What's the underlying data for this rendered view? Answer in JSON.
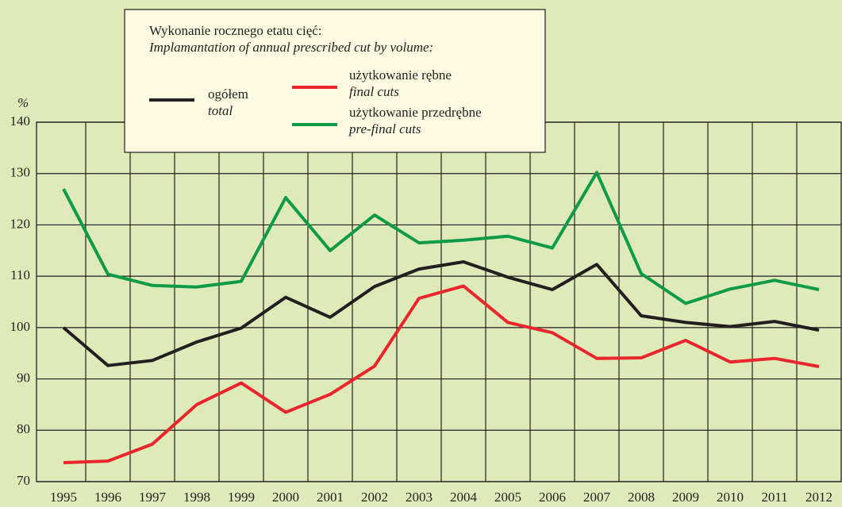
{
  "chart_data": {
    "type": "line",
    "legend_title": [
      "Wykonanie rocznego etatu cięć:",
      "Implamantation of annual prescribed cut by volume:"
    ],
    "ylabel": "%",
    "categories": [
      "1995",
      "1996",
      "1997",
      "1998",
      "1999",
      "2000",
      "2001",
      "2002",
      "2003",
      "2004",
      "2005",
      "2006",
      "2007",
      "2008",
      "2009",
      "2010",
      "2011",
      "2012"
    ],
    "series": [
      {
        "name": "ogółem",
        "name_en": "total",
        "color": "#231f20",
        "values": [
          100,
          92.6,
          93.6,
          97.2,
          99.9,
          105.9,
          102,
          108,
          111.4,
          112.8,
          109.8,
          107.4,
          112.3,
          102.3,
          101,
          100.2,
          101.2,
          99.5
        ]
      },
      {
        "name": "użytkowanie rębne",
        "name_en": "final cuts",
        "color": "#e8262b",
        "values": [
          73.7,
          74,
          77.3,
          85,
          89.2,
          83.5,
          87,
          92.5,
          105.7,
          108.1,
          101,
          99,
          94,
          94.1,
          97.5,
          93.3,
          94,
          92.4
        ]
      },
      {
        "name": "użytkowanie przedrębne",
        "name_en": "pre-final cuts",
        "color": "#0f9a48",
        "values": [
          127,
          110.4,
          108.2,
          107.9,
          109,
          125.3,
          115,
          121.9,
          116.5,
          117,
          117.8,
          115.5,
          130.2,
          110.5,
          104.7,
          107.5,
          109.2,
          107.4
        ]
      }
    ],
    "ylim": [
      70,
      140
    ],
    "yticks": [
      70,
      80,
      90,
      100,
      110,
      120,
      130,
      140
    ],
    "grid": true
  }
}
